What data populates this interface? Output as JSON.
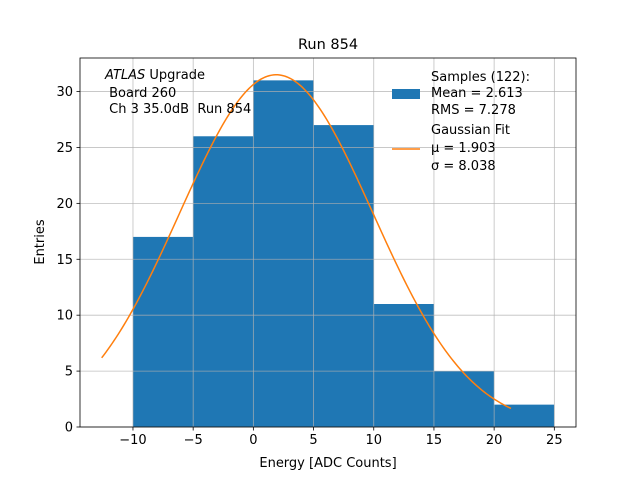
{
  "chart_data": {
    "type": "bar",
    "title": "Run 854",
    "xlabel": "Energy [ADC Counts]",
    "ylabel": "Entries",
    "xlim": [
      -14.4,
      26.8
    ],
    "ylim": [
      0,
      33
    ],
    "grid": true,
    "xticks": [
      -10,
      -5,
      0,
      5,
      10,
      15,
      20,
      25
    ],
    "xtick_labels": [
      "−10",
      "−5",
      "0",
      "5",
      "10",
      "15",
      "20",
      "25"
    ],
    "yticks": [
      0,
      5,
      10,
      15,
      20,
      25,
      30
    ],
    "bin_edges": [
      -10,
      -5,
      0,
      5,
      10,
      15,
      20,
      25
    ],
    "values": [
      17,
      26,
      31,
      27,
      11,
      5,
      2
    ],
    "fit": {
      "type": "gaussian",
      "amplitude": 31.5,
      "mu": 1.903,
      "sigma": 8.038,
      "x_range": [
        -12.6,
        21.4
      ]
    },
    "colors": {
      "bars": "#1f77b4",
      "fit": "#ff7f0e",
      "grid": "#b0b0b0"
    },
    "annotation": {
      "italic": "ATLAS",
      "line1_rest": " Upgrade",
      "line2": " Board 260",
      "line3": " Ch 3 35.0dB  Run 854"
    },
    "legend": {
      "placement": "top-right",
      "samples": [
        "Samples (122):",
        "Mean = 2.613",
        "RMS = 7.278"
      ],
      "fit": [
        "Gaussian Fit",
        "μ = 1.903",
        "σ = 8.038"
      ]
    }
  }
}
